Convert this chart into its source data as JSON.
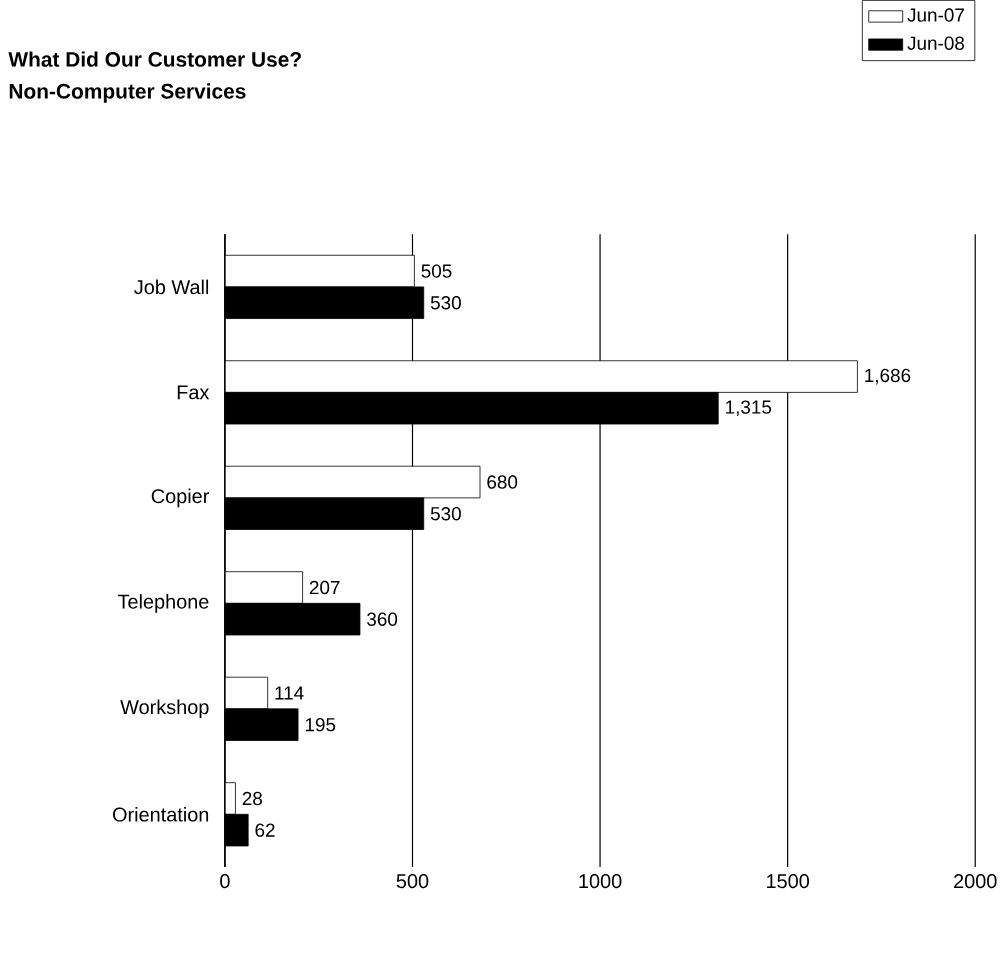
{
  "chart_data": {
    "type": "bar",
    "orientation": "horizontal",
    "title": "What Did Our Customer Use?",
    "subtitle": "Non-Computer Services",
    "categories": [
      "Job Wall",
      "Fax",
      "Copier",
      "Telephone",
      "Workshop",
      "Orientation"
    ],
    "series": [
      {
        "name": "Jun-07",
        "color": "#ffffff",
        "values": [
          505,
          1686,
          680,
          207,
          114,
          28
        ],
        "value_labels": [
          "505",
          "1,686",
          "680",
          "207",
          "114",
          "28"
        ]
      },
      {
        "name": "Jun-08",
        "color": "#000000",
        "values": [
          530,
          1315,
          530,
          360,
          195,
          62
        ],
        "value_labels": [
          "530",
          "1,315",
          "530",
          "360",
          "195",
          "62"
        ]
      }
    ],
    "xlim": [
      0,
      2000
    ],
    "xticks": [
      0,
      500,
      1000,
      1500,
      2000
    ],
    "grid": "x",
    "legend": "top right"
  }
}
